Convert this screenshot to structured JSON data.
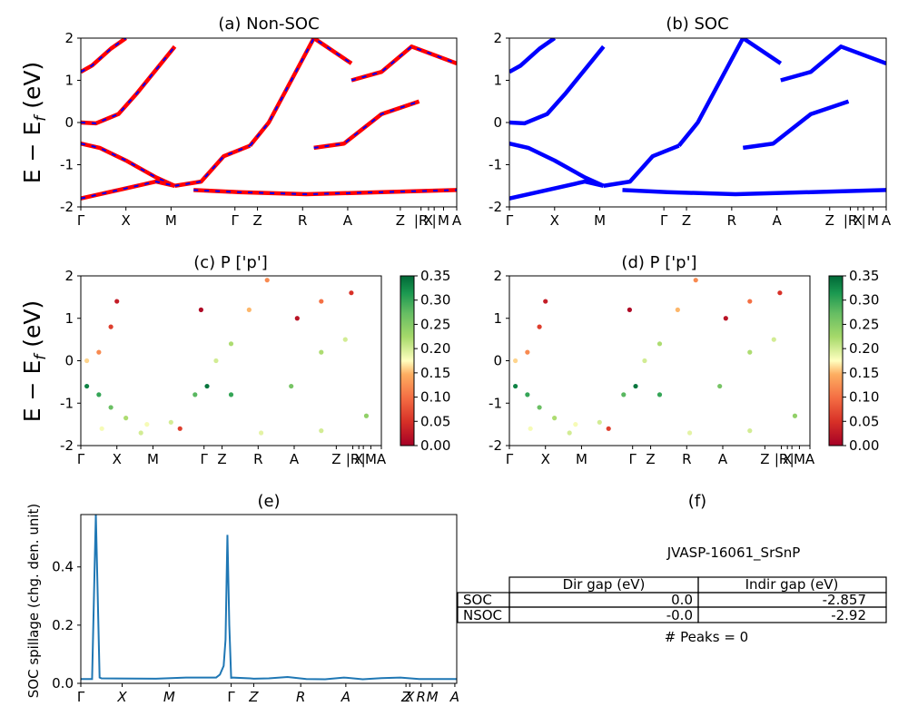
{
  "chart_data": [
    {
      "type": "line",
      "panel": "a",
      "title": "(a) Non-SOC",
      "ylabel": "E − E_f (eV)",
      "ylabel_main": "E − E",
      "ylabel_sub": "f",
      "ylabel_unit": " (eV)",
      "ylim": [
        -2,
        2
      ],
      "yticks": [
        -2,
        -1,
        0,
        1,
        2
      ],
      "kpath_labels": [
        "Γ",
        "X",
        "M",
        "Γ",
        "Z",
        "R",
        "A",
        "Z",
        "|R",
        "X",
        "|",
        "M",
        "A"
      ],
      "colors": {
        "primary": "#ff0000",
        "dash": "#0000ff"
      },
      "series": [
        {
          "x": [
            0.0,
            0.03,
            0.08,
            0.12
          ],
          "y": [
            1.2,
            1.35,
            1.75,
            2.0
          ]
        },
        {
          "x": [
            0.0,
            0.04,
            0.1,
            0.15,
            0.25
          ],
          "y": [
            0.0,
            -0.02,
            0.2,
            0.7,
            1.8
          ]
        },
        {
          "x": [
            0.0,
            0.05,
            0.12,
            0.2,
            0.25
          ],
          "y": [
            -0.5,
            -0.6,
            -0.9,
            -1.3,
            -1.5
          ]
        },
        {
          "x": [
            0.25,
            0.32,
            0.38,
            0.45
          ],
          "y": [
            -1.5,
            -1.4,
            -0.8,
            -0.55
          ]
        },
        {
          "x": [
            0.45,
            0.5,
            0.56,
            0.62,
            0.72
          ],
          "y": [
            -0.55,
            0.0,
            1.0,
            2.0,
            1.4
          ]
        },
        {
          "x": [
            0.62,
            0.7,
            0.8,
            0.9
          ],
          "y": [
            -0.6,
            -0.5,
            0.2,
            0.5
          ]
        },
        {
          "x": [
            0.0,
            0.1,
            0.2,
            0.25
          ],
          "y": [
            -1.8,
            -1.6,
            -1.4,
            -1.5
          ]
        },
        {
          "x": [
            0.3,
            0.42,
            0.6,
            0.8,
            1.0
          ],
          "y": [
            -1.6,
            -1.65,
            -1.7,
            -1.65,
            -1.6
          ]
        },
        {
          "x": [
            0.72,
            0.8,
            0.88,
            1.0
          ],
          "y": [
            1.0,
            1.2,
            1.8,
            1.4
          ]
        }
      ]
    },
    {
      "type": "line",
      "panel": "b",
      "title": "(b) SOC",
      "ylim": [
        -2,
        2
      ],
      "yticks": [
        -2,
        -1,
        0,
        1,
        2
      ],
      "kpath_labels": [
        "Γ",
        "X",
        "M",
        "Γ",
        "Z",
        "R",
        "A",
        "Z",
        "|R",
        "X",
        "|",
        "M",
        "A"
      ],
      "colors": {
        "primary": "#0000ff"
      },
      "series": [
        {
          "x": [
            0.0,
            0.03,
            0.08,
            0.12
          ],
          "y": [
            1.2,
            1.35,
            1.75,
            2.0
          ]
        },
        {
          "x": [
            0.0,
            0.04,
            0.1,
            0.15,
            0.25
          ],
          "y": [
            0.0,
            -0.02,
            0.2,
            0.7,
            1.8
          ]
        },
        {
          "x": [
            0.0,
            0.05,
            0.12,
            0.2,
            0.25
          ],
          "y": [
            -0.5,
            -0.6,
            -0.9,
            -1.3,
            -1.5
          ]
        },
        {
          "x": [
            0.25,
            0.32,
            0.38,
            0.45
          ],
          "y": [
            -1.5,
            -1.4,
            -0.8,
            -0.55
          ]
        },
        {
          "x": [
            0.45,
            0.5,
            0.56,
            0.62,
            0.72
          ],
          "y": [
            -0.55,
            0.0,
            1.0,
            2.0,
            1.4
          ]
        },
        {
          "x": [
            0.62,
            0.7,
            0.8,
            0.9
          ],
          "y": [
            -0.6,
            -0.5,
            0.2,
            0.5
          ]
        },
        {
          "x": [
            0.0,
            0.1,
            0.2,
            0.25
          ],
          "y": [
            -1.8,
            -1.6,
            -1.4,
            -1.5
          ]
        },
        {
          "x": [
            0.3,
            0.42,
            0.6,
            0.8,
            1.0
          ],
          "y": [
            -1.6,
            -1.65,
            -1.7,
            -1.65,
            -1.6
          ]
        },
        {
          "x": [
            0.72,
            0.8,
            0.88,
            1.0
          ],
          "y": [
            1.0,
            1.2,
            1.8,
            1.4
          ]
        }
      ]
    },
    {
      "type": "scatter",
      "panel": "c",
      "title": "(c)  P ['p']",
      "ylim": [
        -2,
        2
      ],
      "yticks": [
        -2,
        -1,
        0,
        1,
        2
      ],
      "kpath_labels": [
        "Γ",
        "X",
        "M",
        "Γ",
        "Z",
        "R",
        "A",
        "Z",
        "|R",
        "X",
        "|",
        "M",
        "A"
      ],
      "colorbar": {
        "min": 0.0,
        "max": 0.35,
        "ticks": [
          "0.00",
          "0.05",
          "0.10",
          "0.15",
          "0.20",
          "0.25",
          "0.30",
          "0.35"
        ],
        "colormap": "RdYlGn"
      },
      "points": [
        {
          "x": 0.02,
          "y": -0.6,
          "c": 0.33
        },
        {
          "x": 0.06,
          "y": -0.8,
          "c": 0.3
        },
        {
          "x": 0.1,
          "y": -1.1,
          "c": 0.27
        },
        {
          "x": 0.15,
          "y": -1.35,
          "c": 0.22
        },
        {
          "x": 0.22,
          "y": -1.5,
          "c": 0.18
        },
        {
          "x": 0.3,
          "y": -1.45,
          "c": 0.2
        },
        {
          "x": 0.38,
          "y": -0.8,
          "c": 0.28
        },
        {
          "x": 0.42,
          "y": -0.6,
          "c": 0.34
        },
        {
          "x": 0.5,
          "y": -0.8,
          "c": 0.3
        },
        {
          "x": 0.02,
          "y": 0.0,
          "c": 0.16
        },
        {
          "x": 0.06,
          "y": 0.2,
          "c": 0.12
        },
        {
          "x": 0.1,
          "y": 0.8,
          "c": 0.06
        },
        {
          "x": 0.12,
          "y": 1.4,
          "c": 0.03
        },
        {
          "x": 0.45,
          "y": 0.0,
          "c": 0.2
        },
        {
          "x": 0.5,
          "y": 0.4,
          "c": 0.22
        },
        {
          "x": 0.56,
          "y": 1.2,
          "c": 0.15
        },
        {
          "x": 0.62,
          "y": 1.9,
          "c": 0.12
        },
        {
          "x": 0.7,
          "y": -0.6,
          "c": 0.26
        },
        {
          "x": 0.8,
          "y": 0.2,
          "c": 0.22
        },
        {
          "x": 0.88,
          "y": 0.5,
          "c": 0.2
        },
        {
          "x": 0.72,
          "y": 1.0,
          "c": 0.02
        },
        {
          "x": 0.8,
          "y": 1.4,
          "c": 0.1
        },
        {
          "x": 0.9,
          "y": 1.6,
          "c": 0.05
        },
        {
          "x": 0.6,
          "y": -1.7,
          "c": 0.19
        },
        {
          "x": 0.8,
          "y": -1.65,
          "c": 0.2
        },
        {
          "x": 0.95,
          "y": -1.3,
          "c": 0.24
        },
        {
          "x": 0.4,
          "y": 1.2,
          "c": 0.01
        },
        {
          "x": 0.33,
          "y": -1.6,
          "c": 0.06
        },
        {
          "x": 0.2,
          "y": -1.7,
          "c": 0.2
        },
        {
          "x": 0.07,
          "y": -1.6,
          "c": 0.18
        }
      ]
    },
    {
      "type": "scatter",
      "panel": "d",
      "title": "(d) P ['p']",
      "ylim": [
        -2,
        2
      ],
      "yticks": [
        -2,
        -1,
        0,
        1,
        2
      ],
      "kpath_labels": [
        "Γ",
        "X",
        "M",
        "Γ",
        "Z",
        "R",
        "A",
        "Z",
        "|R",
        "X",
        "|",
        "M",
        "A"
      ],
      "colorbar": {
        "min": 0.0,
        "max": 0.35,
        "ticks": [
          "0.00",
          "0.05",
          "0.10",
          "0.15",
          "0.20",
          "0.25",
          "0.30",
          "0.35"
        ],
        "colormap": "RdYlGn"
      },
      "points": [
        {
          "x": 0.02,
          "y": -0.6,
          "c": 0.33
        },
        {
          "x": 0.06,
          "y": -0.8,
          "c": 0.3
        },
        {
          "x": 0.1,
          "y": -1.1,
          "c": 0.27
        },
        {
          "x": 0.15,
          "y": -1.35,
          "c": 0.22
        },
        {
          "x": 0.22,
          "y": -1.5,
          "c": 0.18
        },
        {
          "x": 0.3,
          "y": -1.45,
          "c": 0.2
        },
        {
          "x": 0.38,
          "y": -0.8,
          "c": 0.28
        },
        {
          "x": 0.42,
          "y": -0.6,
          "c": 0.34
        },
        {
          "x": 0.5,
          "y": -0.8,
          "c": 0.3
        },
        {
          "x": 0.02,
          "y": 0.0,
          "c": 0.16
        },
        {
          "x": 0.06,
          "y": 0.2,
          "c": 0.12
        },
        {
          "x": 0.1,
          "y": 0.8,
          "c": 0.06
        },
        {
          "x": 0.12,
          "y": 1.4,
          "c": 0.03
        },
        {
          "x": 0.45,
          "y": 0.0,
          "c": 0.2
        },
        {
          "x": 0.5,
          "y": 0.4,
          "c": 0.22
        },
        {
          "x": 0.56,
          "y": 1.2,
          "c": 0.15
        },
        {
          "x": 0.62,
          "y": 1.9,
          "c": 0.12
        },
        {
          "x": 0.7,
          "y": -0.6,
          "c": 0.26
        },
        {
          "x": 0.8,
          "y": 0.2,
          "c": 0.22
        },
        {
          "x": 0.88,
          "y": 0.5,
          "c": 0.2
        },
        {
          "x": 0.72,
          "y": 1.0,
          "c": 0.02
        },
        {
          "x": 0.8,
          "y": 1.4,
          "c": 0.1
        },
        {
          "x": 0.9,
          "y": 1.6,
          "c": 0.05
        },
        {
          "x": 0.6,
          "y": -1.7,
          "c": 0.19
        },
        {
          "x": 0.8,
          "y": -1.65,
          "c": 0.2
        },
        {
          "x": 0.95,
          "y": -1.3,
          "c": 0.24
        },
        {
          "x": 0.4,
          "y": 1.2,
          "c": 0.01
        },
        {
          "x": 0.33,
          "y": -1.6,
          "c": 0.06
        },
        {
          "x": 0.2,
          "y": -1.7,
          "c": 0.2
        },
        {
          "x": 0.07,
          "y": -1.6,
          "c": 0.18
        }
      ]
    },
    {
      "type": "line",
      "panel": "e",
      "title": "(e)",
      "ylabel": "SOC spillage (chg. den. unit)",
      "ylim": [
        0,
        0.58
      ],
      "yticks": [
        "0.0",
        "0.2",
        "0.4"
      ],
      "kpath_labels": [
        "Γ",
        "X",
        "M",
        "Γ",
        "Z",
        "R",
        "A",
        "Z",
        "X",
        "R",
        "M",
        "A"
      ],
      "colors": {
        "line": "#1f77b4"
      },
      "x": [
        0.0,
        0.03,
        0.035,
        0.04,
        0.045,
        0.05,
        0.055,
        0.2,
        0.28,
        0.4,
        0.46,
        0.36,
        0.37,
        0.38,
        0.385,
        0.39,
        0.395,
        0.4,
        0.45,
        0.5,
        0.55,
        0.6,
        0.65,
        0.7,
        0.75,
        0.8,
        0.85,
        0.9,
        0.95,
        1.0
      ],
      "y": [
        0.015,
        0.015,
        0.3,
        0.58,
        0.3,
        0.02,
        0.017,
        0.016,
        0.02,
        0.016,
        0.016,
        0.02,
        0.03,
        0.06,
        0.15,
        0.51,
        0.2,
        0.02,
        0.017,
        0.017,
        0.022,
        0.015,
        0.014,
        0.02,
        0.014,
        0.018,
        0.02,
        0.015,
        0.015,
        0.015
      ]
    }
  ],
  "panel_f": {
    "title": "(f)",
    "material": "JVASP-16061_SrSnP",
    "headers": [
      "",
      "Dir gap (eV)",
      "Indir gap (eV)"
    ],
    "rows": [
      [
        "SOC",
        "0.0",
        "-2.857"
      ],
      [
        "NSOC",
        "-0.0",
        "-2.92"
      ]
    ],
    "peaks": "# Peaks = 0"
  }
}
